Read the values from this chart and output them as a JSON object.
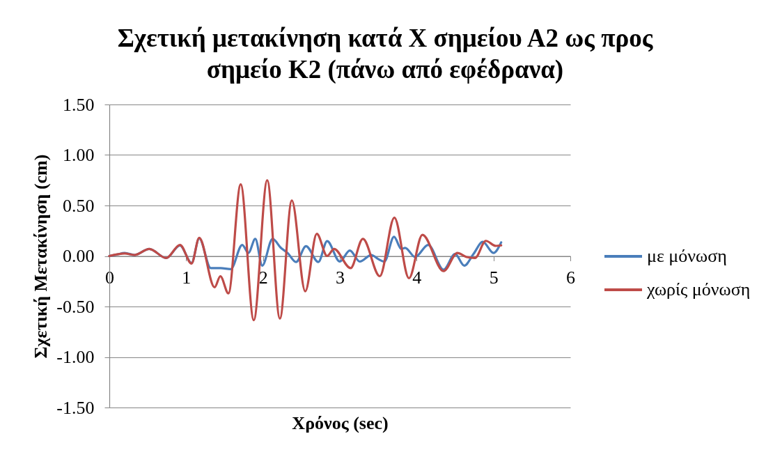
{
  "chart_data": {
    "type": "line",
    "title": "Σχετική μετακίνηση κατά Χ σημείου Α2 ως προς\nσημείο Κ2 (πάνω από εφέδρανα)",
    "xlabel": "Χρόνος (sec)",
    "ylabel": "Σχετική Μετακίνηση (cm)",
    "xlim": [
      0,
      6
    ],
    "xticks": [
      0,
      1,
      2,
      3,
      4,
      5,
      6
    ],
    "ylim": [
      -1.5,
      1.5
    ],
    "yticks": [
      {
        "value": -1.5,
        "label": "-1.50"
      },
      {
        "value": -1,
        "label": "-1.00"
      },
      {
        "value": -0.5,
        "label": "-0.50"
      },
      {
        "value": 0,
        "label": "0.00"
      },
      {
        "value": 0.5,
        "label": "0.50"
      },
      {
        "value": 1,
        "label": "1.00"
      },
      {
        "value": 1.5,
        "label": "1.50"
      }
    ],
    "grid": "y",
    "legend": "right",
    "series": [
      {
        "name": "με μόνωση",
        "color": "#4a7ebb",
        "x": [
          0,
          0.1,
          0.2,
          0.33,
          0.52,
          0.74,
          0.92,
          1.07,
          1.17,
          1.32,
          1.45,
          1.58,
          1.73,
          1.81,
          1.9,
          1.99,
          2.125,
          2.23,
          2.32,
          2.43,
          2.56,
          2.72,
          2.835,
          3.0,
          3.13,
          3.26,
          3.41,
          3.5,
          3.58,
          3.705,
          3.8,
          3.85,
          3.98,
          4.15,
          4.35,
          4.5,
          4.62,
          4.74,
          4.86,
          5.0,
          5.1
        ],
        "values": [
          0,
          0.015,
          0.03,
          0.01,
          0.07,
          -0.02,
          0.105,
          -0.07,
          0.175,
          -0.12,
          -0.12,
          -0.13,
          0.11,
          0.03,
          0.17,
          -0.095,
          0.17,
          0.083,
          0.03,
          -0.06,
          0.097,
          -0.06,
          0.147,
          -0.055,
          0.055,
          -0.055,
          0.01,
          -0.03,
          -0.055,
          0.19,
          0.07,
          0.08,
          -0.01,
          0.11,
          -0.135,
          0.02,
          -0.095,
          0.02,
          0.14,
          0.03,
          0.135
        ]
      },
      {
        "name": "χωρίς μόνωση",
        "color": "#be4b48",
        "x": [
          0,
          0.2,
          0.33,
          0.52,
          0.74,
          0.92,
          1.07,
          1.17,
          1.37,
          1.445,
          1.55,
          1.71,
          1.88,
          2.055,
          2.22,
          2.375,
          2.55,
          2.7,
          2.835,
          2.925,
          3.14,
          3.3,
          3.52,
          3.71,
          3.9,
          4.075,
          4.35,
          4.53,
          4.65,
          4.76,
          4.9,
          5.03,
          5.1
        ],
        "values": [
          0,
          0.025,
          0.01,
          0.07,
          -0.02,
          0.11,
          -0.075,
          0.18,
          -0.31,
          -0.2,
          -0.37,
          0.71,
          -0.635,
          0.75,
          -0.62,
          0.55,
          -0.35,
          0.22,
          0.0,
          0.07,
          -0.12,
          0.17,
          -0.2,
          0.38,
          -0.22,
          0.21,
          -0.15,
          0.03,
          -0.01,
          -0.02,
          0.15,
          0.1,
          0.105
        ]
      }
    ]
  }
}
